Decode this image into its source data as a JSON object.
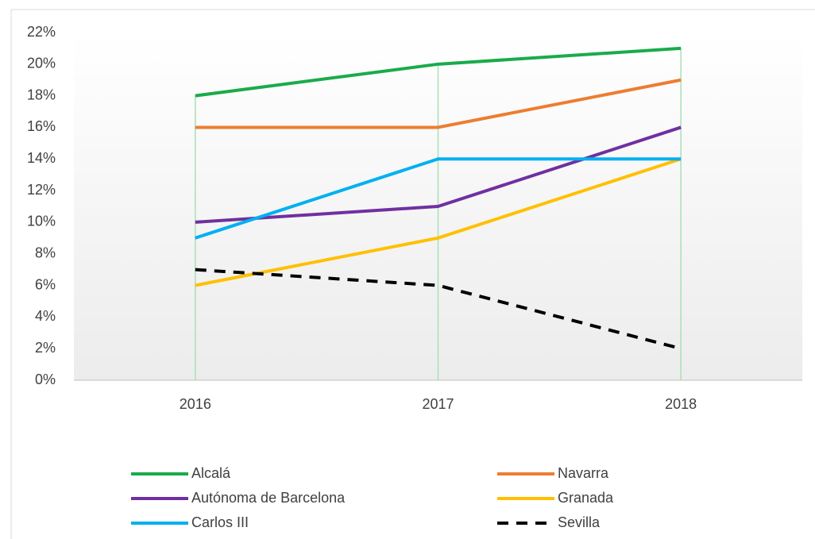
{
  "chart_data": {
    "type": "line",
    "categories": [
      "2016",
      "2017",
      "2018"
    ],
    "series": [
      {
        "name": "Alcalá",
        "color": "#1aab4b",
        "values": [
          18,
          20,
          21
        ]
      },
      {
        "name": "Navarra",
        "color": "#ed7d31",
        "values": [
          16,
          16,
          19
        ]
      },
      {
        "name": "Autónoma de Barcelona",
        "color": "#7030a0",
        "values": [
          10,
          11,
          16
        ]
      },
      {
        "name": "Granada",
        "color": "#ffc000",
        "values": [
          6,
          9,
          14
        ]
      },
      {
        "name": "Carlos III",
        "color": "#00b0f0",
        "values": [
          9,
          14,
          14
        ]
      },
      {
        "name": "Sevilla",
        "color": "#000000",
        "values": [
          7,
          6,
          2
        ],
        "dashed": true
      }
    ],
    "ylim": [
      0,
      22
    ],
    "yticks": [
      {
        "value": 0,
        "label": "0%"
      },
      {
        "value": 2,
        "label": "2%"
      },
      {
        "value": 4,
        "label": "4%"
      },
      {
        "value": 6,
        "label": "6%"
      },
      {
        "value": 8,
        "label": "8%"
      },
      {
        "value": 10,
        "label": "10%"
      },
      {
        "value": 12,
        "label": "12%"
      },
      {
        "value": 14,
        "label": "14%"
      },
      {
        "value": 16,
        "label": "16%"
      },
      {
        "value": 18,
        "label": "18%"
      },
      {
        "value": 20,
        "label": "20%"
      },
      {
        "value": 22,
        "label": "22%"
      }
    ],
    "drop_lines": true,
    "legend": "bottom"
  }
}
